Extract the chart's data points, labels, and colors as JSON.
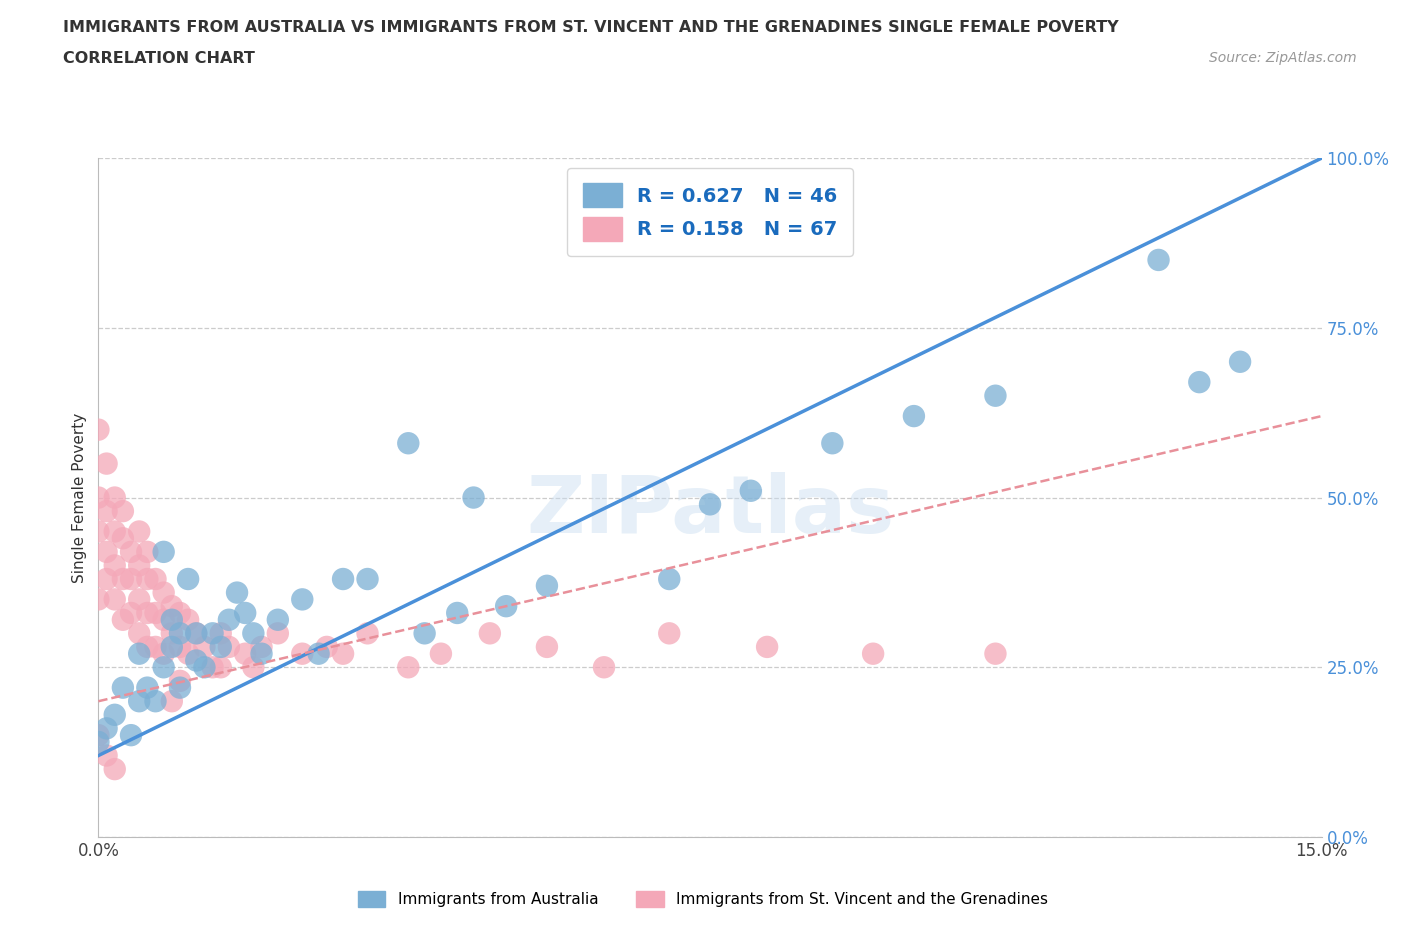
{
  "title_line1": "IMMIGRANTS FROM AUSTRALIA VS IMMIGRANTS FROM ST. VINCENT AND THE GRENADINES SINGLE FEMALE POVERTY",
  "title_line2": "CORRELATION CHART",
  "source_text": "Source: ZipAtlas.com",
  "ylabel": "Single Female Poverty",
  "xmin": 0.0,
  "xmax": 0.15,
  "ymin": 0.0,
  "ymax": 1.0,
  "yticks": [
    0.0,
    0.25,
    0.5,
    0.75,
    1.0
  ],
  "xticks": [
    0.0,
    0.03,
    0.06,
    0.09,
    0.12,
    0.15
  ],
  "australia_color": "#7bafd4",
  "stvincent_color": "#f4a8b8",
  "australia_R": 0.627,
  "australia_N": 46,
  "stvincent_R": 0.158,
  "stvincent_N": 67,
  "legend_color": "#1a6bbd",
  "watermark": "ZIPatlas",
  "au_line_x0": 0.0,
  "au_line_y0": 0.12,
  "au_line_x1": 0.15,
  "au_line_y1": 1.0,
  "sv_line_x0": 0.0,
  "sv_line_y0": 0.2,
  "sv_line_x1": 0.15,
  "sv_line_y1": 0.62,
  "australia_x": [
    0.0,
    0.001,
    0.002,
    0.003,
    0.004,
    0.005,
    0.005,
    0.006,
    0.007,
    0.008,
    0.008,
    0.009,
    0.009,
    0.01,
    0.01,
    0.011,
    0.012,
    0.012,
    0.013,
    0.014,
    0.015,
    0.016,
    0.017,
    0.018,
    0.019,
    0.02,
    0.022,
    0.025,
    0.027,
    0.03,
    0.033,
    0.038,
    0.04,
    0.044,
    0.046,
    0.05,
    0.055,
    0.07,
    0.075,
    0.08,
    0.09,
    0.1,
    0.11,
    0.13,
    0.135,
    0.14
  ],
  "australia_y": [
    0.14,
    0.16,
    0.18,
    0.22,
    0.15,
    0.2,
    0.27,
    0.22,
    0.2,
    0.25,
    0.42,
    0.28,
    0.32,
    0.22,
    0.3,
    0.38,
    0.26,
    0.3,
    0.25,
    0.3,
    0.28,
    0.32,
    0.36,
    0.33,
    0.3,
    0.27,
    0.32,
    0.35,
    0.27,
    0.38,
    0.38,
    0.58,
    0.3,
    0.33,
    0.5,
    0.34,
    0.37,
    0.38,
    0.49,
    0.51,
    0.58,
    0.62,
    0.65,
    0.85,
    0.67,
    0.7
  ],
  "stvincent_x": [
    0.0,
    0.0,
    0.0,
    0.0,
    0.001,
    0.001,
    0.001,
    0.001,
    0.002,
    0.002,
    0.002,
    0.002,
    0.003,
    0.003,
    0.003,
    0.003,
    0.004,
    0.004,
    0.004,
    0.005,
    0.005,
    0.005,
    0.005,
    0.006,
    0.006,
    0.006,
    0.006,
    0.007,
    0.007,
    0.007,
    0.008,
    0.008,
    0.008,
    0.009,
    0.009,
    0.009,
    0.01,
    0.01,
    0.01,
    0.011,
    0.011,
    0.012,
    0.013,
    0.014,
    0.015,
    0.015,
    0.016,
    0.018,
    0.019,
    0.02,
    0.022,
    0.025,
    0.028,
    0.03,
    0.033,
    0.038,
    0.042,
    0.048,
    0.055,
    0.062,
    0.07,
    0.082,
    0.095,
    0.11,
    0.0,
    0.001,
    0.002
  ],
  "stvincent_y": [
    0.6,
    0.5,
    0.45,
    0.35,
    0.55,
    0.48,
    0.42,
    0.38,
    0.5,
    0.45,
    0.4,
    0.35,
    0.48,
    0.44,
    0.38,
    0.32,
    0.42,
    0.38,
    0.33,
    0.45,
    0.4,
    0.35,
    0.3,
    0.42,
    0.38,
    0.33,
    0.28,
    0.38,
    0.33,
    0.28,
    0.36,
    0.32,
    0.27,
    0.34,
    0.3,
    0.2,
    0.33,
    0.28,
    0.23,
    0.32,
    0.27,
    0.3,
    0.28,
    0.25,
    0.3,
    0.25,
    0.28,
    0.27,
    0.25,
    0.28,
    0.3,
    0.27,
    0.28,
    0.27,
    0.3,
    0.25,
    0.27,
    0.3,
    0.28,
    0.25,
    0.3,
    0.28,
    0.27,
    0.27,
    0.15,
    0.12,
    0.1
  ]
}
